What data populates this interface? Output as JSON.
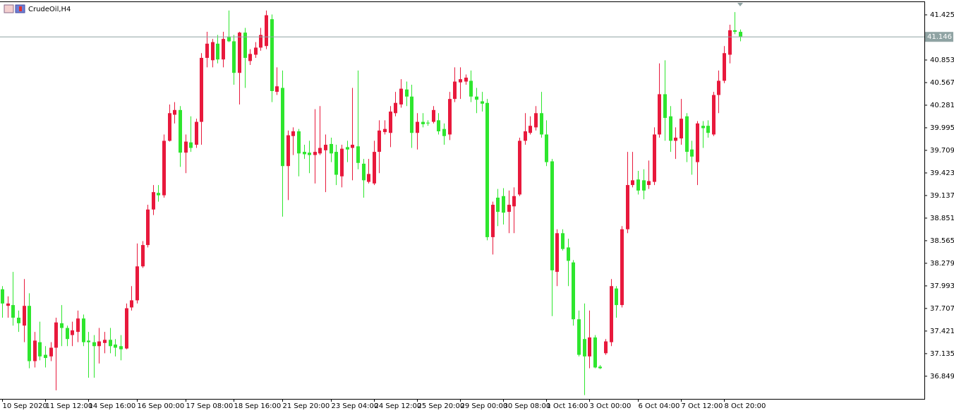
{
  "chart_data": {
    "type": "candlestick",
    "title": "CrudeOil,H4",
    "up_color": "#e8193c",
    "down_color": "#2ee62e",
    "price_line_color": "#8fa3a3",
    "current_price": 41.146,
    "ylim": [
      36.562,
      41.586
    ],
    "yticks": [
      41.425,
      40.853,
      40.567,
      40.281,
      39.995,
      39.709,
      39.423,
      39.137,
      38.851,
      38.565,
      38.279,
      37.993,
      37.707,
      37.421,
      37.135,
      36.849
    ],
    "categories": [
      "10 Sep 2020",
      null,
      null,
      null,
      null,
      null,
      null,
      null,
      "11 Sep 12:00",
      null,
      null,
      null,
      null,
      null,
      null,
      null,
      "14 Sep 16:00",
      null,
      null,
      null,
      null,
      null,
      null,
      null,
      null,
      "16 Sep 00:00",
      null,
      null,
      null,
      null,
      null,
      null,
      null,
      null,
      "17 Sep 08:00",
      null,
      null,
      null,
      null,
      null,
      null,
      null,
      null,
      "18 Sep 16:00",
      null,
      null,
      null,
      null,
      null,
      null,
      null,
      null,
      "21 Sep 20:00",
      null,
      null,
      null,
      null,
      null,
      null,
      null,
      null,
      "23 Sep 04:00",
      null,
      null,
      null,
      null,
      null,
      null,
      null,
      "24 Sep 12:00",
      null,
      null,
      null,
      null,
      null,
      null,
      null,
      "25 Sep 20:00",
      null,
      null,
      null,
      null,
      null,
      null,
      null,
      "29 Sep 00:00",
      null,
      null,
      null,
      null,
      null,
      null,
      null,
      "30 Sep 08:00",
      null,
      null,
      null,
      null,
      null,
      null,
      null,
      "1 Oct 16:00",
      null,
      null,
      null,
      null,
      null,
      null,
      null,
      "3 Oct 00:00",
      null,
      null,
      null,
      null,
      null,
      null,
      null,
      null,
      "6 Oct 04:00",
      null,
      null,
      null,
      null,
      null,
      null,
      null,
      "7 Oct 12:00",
      null,
      null,
      null,
      null,
      null,
      null,
      null,
      "8 Oct 20:00",
      null,
      null,
      null
    ],
    "open": [
      37.95,
      37.74,
      37.75,
      37.59,
      37.49,
      37.74,
      37.04,
      37.28,
      37.12,
      37.1,
      37.21,
      37.52,
      37.46,
      37.37,
      37.41,
      37.58,
      37.3,
      37.28,
      37.23,
      37.27,
      37.31,
      37.25,
      37.23,
      37.2,
      37.72,
      37.81,
      38.24,
      38.51,
      38.96,
      39.17,
      39.14,
      39.83,
      40.16,
      40.22,
      39.68,
      39.81,
      39.78,
      40.07,
      40.88,
      40.85,
      41.06,
      40.86,
      41.15,
      41.09,
      40.69,
      41.2,
      40.84,
      40.92,
      41.01,
      41.03,
      41.37,
      40.45,
      40.5,
      39.51,
      39.89,
      39.95,
      39.69,
      39.68,
      39.65,
      39.67,
      39.71,
      39.79,
      39.69,
      39.38,
      39.75,
      39.74,
      39.76,
      39.54,
      39.31,
      39.29,
      39.69,
      39.94,
      39.93,
      40.18,
      40.29,
      40.48,
      40.39,
      39.93,
      40.07,
      40.06,
      40.07,
      40.09,
      39.98,
      39.91,
      40.36,
      40.57,
      40.58,
      40.59,
      40.39,
      40.33,
      40.31,
      38.61,
      39.11,
      39.13,
      38.93,
      39.0,
      39.15,
      39.83,
      39.93,
      40.0,
      40.18,
      39.91,
      39.57,
      38.17,
      38.66,
      38.48,
      38.29,
      37.57,
      37.32,
      37.1,
      37.34,
      36.97,
      37.14,
      37.28,
      37.96,
      37.75,
      38.71,
      39.27,
      39.34,
      39.33,
      39.27,
      39.31,
      39.91,
      40.42,
      40.14,
      39.83,
      39.86,
      40.14,
      39.72,
      39.56,
      40.02,
      40.02,
      39.91,
      40.41,
      40.59,
      40.92,
      41.23,
      41.21
    ],
    "high": [
      37.99,
      37.86,
      38.17,
      37.68,
      38.08,
      37.9,
      37.41,
      37.54,
      37.23,
      37.28,
      37.59,
      37.75,
      37.49,
      37.54,
      37.68,
      37.63,
      37.41,
      37.37,
      37.46,
      37.41,
      37.46,
      37.32,
      37.37,
      37.77,
      37.99,
      38.53,
      38.56,
      39.02,
      39.27,
      39.27,
      39.91,
      40.29,
      40.32,
      40.27,
      39.91,
      40.14,
      40.11,
      40.94,
      41.21,
      41.12,
      41.17,
      41.21,
      41.48,
      41.17,
      41.21,
      41.26,
      40.99,
      41.08,
      41.26,
      41.48,
      41.43,
      40.76,
      40.72,
      39.96,
      40.0,
      39.98,
      39.78,
      39.83,
      40.23,
      40.27,
      39.91,
      39.87,
      39.78,
      39.78,
      39.83,
      40.5,
      40.72,
      39.6,
      39.6,
      39.83,
      40.09,
      40.09,
      40.27,
      40.45,
      40.61,
      40.58,
      40.54,
      40.18,
      40.18,
      40.09,
      40.27,
      40.18,
      40.05,
      40.45,
      40.76,
      40.76,
      40.67,
      40.72,
      40.5,
      40.45,
      40.36,
      39.06,
      39.22,
      39.23,
      39.2,
      39.24,
      39.87,
      40.18,
      40.14,
      40.27,
      40.45,
      40.09,
      39.6,
      38.71,
      38.71,
      38.59,
      38.32,
      37.68,
      37.77,
      37.68,
      37.37,
      36.99,
      37.32,
      38.08,
      37.99,
      38.75,
      39.69,
      39.69,
      39.45,
      39.47,
      39.58,
      40.0,
      40.81,
      40.85,
      40.27,
      40.0,
      40.36,
      40.18,
      39.83,
      40.08,
      40.08,
      40.09,
      40.45,
      40.72,
      41.03,
      41.3,
      41.46,
      41.24
    ],
    "low": [
      37.59,
      37.59,
      37.49,
      37.41,
      37.28,
      36.95,
      36.96,
      37.05,
      36.96,
      37.04,
      36.67,
      37.23,
      37.23,
      37.23,
      37.28,
      37.23,
      36.83,
      36.83,
      37.01,
      37.14,
      37.14,
      37.1,
      37.05,
      37.19,
      37.68,
      37.77,
      38.22,
      38.48,
      38.89,
      39.06,
      39.11,
      39.82,
      40.05,
      39.5,
      39.42,
      39.69,
      39.74,
      39.78,
      40.76,
      40.76,
      40.81,
      40.76,
      41.08,
      40.54,
      40.29,
      40.5,
      40.79,
      40.88,
      40.97,
      40.99,
      40.32,
      40.41,
      38.87,
      39.08,
      39.65,
      39.38,
      39.6,
      39.42,
      39.29,
      39.65,
      39.18,
      39.56,
      39.27,
      39.24,
      39.56,
      39.33,
      39.47,
      39.11,
      39.29,
      39.27,
      39.42,
      39.91,
      39.75,
      40.14,
      40.25,
      40.27,
      39.74,
      39.72,
      40.0,
      40.02,
      40.05,
      39.91,
      39.78,
      39.84,
      40.32,
      40.36,
      40.54,
      40.32,
      40.18,
      40.2,
      38.57,
      38.39,
      38.75,
      38.77,
      38.66,
      38.66,
      39.13,
      39.78,
      39.91,
      39.96,
      39.87,
      39.51,
      37.61,
      37.99,
      38.44,
      37.99,
      37.49,
      37.1,
      36.61,
      36.95,
      36.95,
      36.94,
      37.12,
      37.23,
      37.59,
      37.72,
      38.66,
      39.24,
      39.15,
      39.09,
      39.22,
      39.27,
      39.87,
      39.83,
      39.69,
      39.6,
      39.78,
      39.56,
      39.4,
      39.27,
      39.74,
      39.87,
      39.89,
      40.18,
      40.56,
      40.81,
      41.18,
      41.09
    ],
    "close": [
      37.77,
      37.77,
      37.59,
      37.52,
      37.74,
      37.04,
      37.3,
      37.1,
      37.08,
      37.21,
      37.53,
      37.46,
      37.32,
      37.43,
      37.58,
      37.28,
      37.28,
      37.23,
      37.29,
      37.31,
      37.23,
      37.21,
      37.19,
      37.71,
      37.81,
      38.24,
      38.51,
      38.96,
      39.18,
      39.14,
      39.83,
      40.18,
      40.22,
      39.68,
      39.82,
      39.74,
      40.07,
      40.88,
      41.06,
      41.08,
      40.86,
      41.12,
      41.09,
      40.69,
      41.2,
      40.88,
      40.93,
      41.01,
      41.17,
      41.42,
      40.46,
      40.52,
      39.51,
      39.9,
      39.95,
      39.67,
      39.66,
      39.65,
      39.69,
      39.74,
      39.78,
      39.67,
      39.4,
      39.73,
      39.72,
      39.78,
      39.55,
      39.33,
      39.41,
      39.69,
      39.96,
      39.98,
      40.2,
      40.31,
      40.49,
      40.39,
      39.93,
      40.07,
      40.04,
      40.05,
      40.22,
      39.95,
      39.89,
      40.36,
      40.58,
      40.61,
      40.63,
      40.39,
      40.35,
      40.3,
      38.61,
      39.02,
      38.93,
      38.92,
      39.02,
      39.13,
      39.83,
      39.95,
      40.02,
      40.18,
      39.91,
      39.56,
      38.19,
      38.66,
      38.46,
      38.31,
      37.57,
      37.12,
      37.1,
      37.34,
      36.96,
      36.95,
      37.29,
      37.99,
      37.75,
      38.71,
      39.27,
      39.33,
      39.2,
      39.2,
      39.32,
      39.91,
      40.42,
      40.12,
      39.83,
      39.87,
      40.11,
      39.69,
      39.63,
      40.05,
      39.99,
      39.93,
      40.41,
      40.59,
      40.94,
      41.23,
      41.21,
      41.15
    ]
  }
}
